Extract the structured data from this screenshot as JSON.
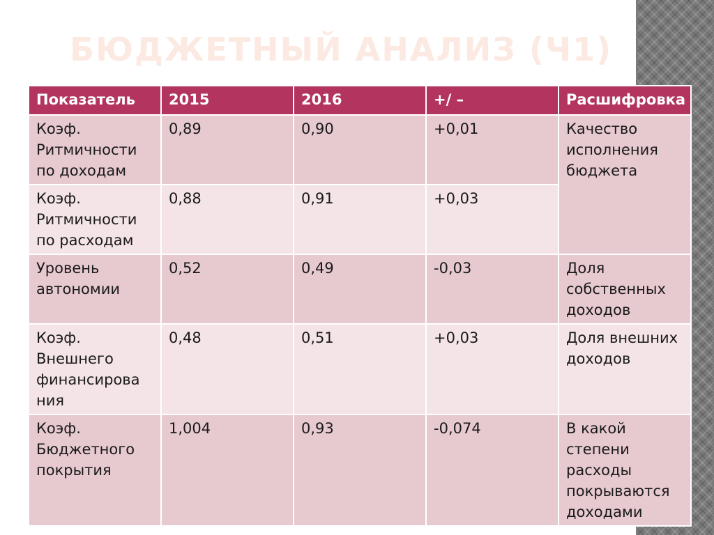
{
  "slide": {
    "title": "БЮДЖЕТНЫЙ АНАЛИЗ (Ч1)"
  },
  "table": {
    "headers": [
      "Показатель",
      "2015",
      "2016",
      "+/ –",
      "Расшифровка"
    ],
    "rows": [
      {
        "indicator": "Коэф. Ритмичности по доходам",
        "y2015": "0,89",
        "y2016": "0,90",
        "delta": "+0,01",
        "description": "Качество исполнения бюджета"
      },
      {
        "indicator": "Коэф. Ритмичности по расходам",
        "y2015": "0,88",
        "y2016": "0,91",
        "delta": "+0,03",
        "description": ""
      },
      {
        "indicator": "Уровень автономии",
        "y2015": "0,52",
        "y2016": "0,49",
        "delta": "-0,03",
        "description": "Доля собственных доходов"
      },
      {
        "indicator": "Коэф. Внешнего финансирова ния",
        "y2015": "0,48",
        "y2016": "0,51",
        "delta": "+0,03",
        "description": "Доля внешних доходов"
      },
      {
        "indicator": "Коэф. Бюджетного покрытия",
        "y2015": "1,004",
        "y2016": "0,93",
        "delta": "-0,074",
        "description": "В какой степени расходы покрываются доходами"
      }
    ]
  },
  "colors": {
    "header_bg": "#b2345f",
    "row_dark": "#e7c9d0",
    "row_light": "#f4e4e7",
    "title_color": "#fbe9e2"
  }
}
